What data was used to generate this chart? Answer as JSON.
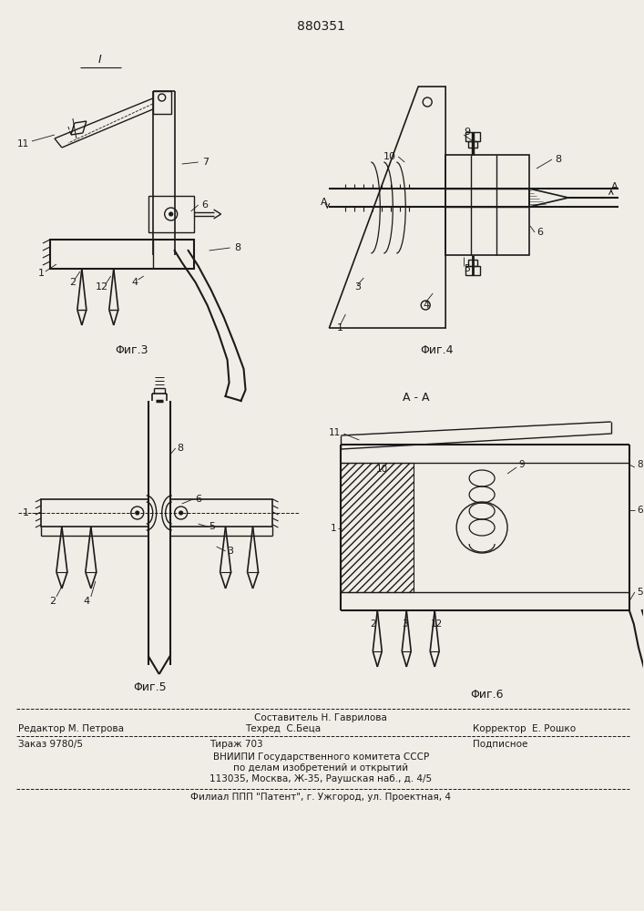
{
  "patent_number": "880351",
  "bg_color": "#f0ede6",
  "line_color": "#1a1a1a",
  "footer_line1_center_top": "Составитель Н. Гаврилова",
  "footer_line1_left": "Редактор М. Петрова",
  "footer_line1_center": "Техред  С.Беца",
  "footer_line1_right": "Корректор  Е. Рошко",
  "footer_line2_left": "Заказ 9780/5",
  "footer_line2_center": "Тираж 703",
  "footer_line2_right": "Подписное",
  "footer_line3": "ВНИИПИ Государственного комитета СССР",
  "footer_line4": "по делам изобретений и открытий",
  "footer_line5": "113035, Москва, Ж-35, Раушская наб., д. 4/5",
  "footer_last": "Филиал ППП \"Патент\", г. Ужгород, ул. Проектная, 4",
  "fig3_label": "Φиг.3",
  "fig4_label": "Φиг.4",
  "fig5_label": "Φиг.5",
  "fig6_label": "Φиг.6",
  "section_label": "А - А",
  "label1": "1",
  "label_I": "I"
}
